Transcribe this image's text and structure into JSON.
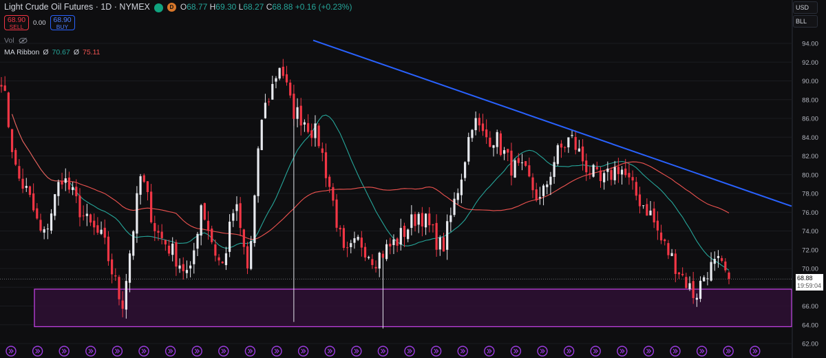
{
  "header": {
    "symbol": "Light Crude Oil Futures · 1D · NYMEX",
    "d_badge": "D",
    "open_key": "O",
    "open": "68.77",
    "high_key": "H",
    "high": "69.30",
    "low_key": "L",
    "low": "68.27",
    "close_key": "C",
    "close": "68.88",
    "change": "+0.16 (+0.23%)",
    "market_open_icon": "green-dot-icon"
  },
  "trade": {
    "sell_price": "68.90",
    "sell_label": "SELL",
    "spread": "0.00",
    "buy_price": "68.90",
    "buy_label": "BUY"
  },
  "indicators": {
    "vol_label": "Vol",
    "vol_icon": "eye-slash-icon",
    "ma_label": "MA Ribbon",
    "ma_symbol": "Ø",
    "ma1_value": "70.67",
    "ma2_value": "75.11"
  },
  "currency": [
    "USD",
    "BLL"
  ],
  "price_tag": {
    "price": "68.88",
    "countdown": "19:59:04"
  },
  "colors": {
    "up": "#e7e9ee",
    "down": "#f23645",
    "ma_fast": "#26a69a",
    "ma_slow": "#ef5350",
    "trendline": "#2962ff",
    "zone_stroke": "#c040e0",
    "zone_fill": "#2e0f34"
  },
  "chart_data": {
    "type": "candlestick",
    "y_ticks": [
      "94.00",
      "92.00",
      "90.00",
      "88.00",
      "86.00",
      "84.00",
      "82.00",
      "80.00",
      "78.00",
      "76.00",
      "74.00",
      "72.00",
      "70.00",
      "68.00",
      "66.00",
      "64.00",
      "62.00"
    ],
    "ylim": [
      61.3,
      95.2
    ],
    "bar_count": 205,
    "close_path": [
      [
        0,
        90.5
      ],
      [
        8,
        80
      ],
      [
        14,
        78
      ],
      [
        22,
        73
      ],
      [
        32,
        80
      ],
      [
        45,
        75
      ],
      [
        54,
        73
      ],
      [
        64,
        66
      ],
      [
        74,
        80
      ],
      [
        82,
        74
      ],
      [
        90,
        72
      ],
      [
        100,
        69
      ],
      [
        106,
        77
      ],
      [
        113,
        72
      ],
      [
        117,
        70
      ],
      [
        124,
        77
      ],
      [
        131,
        69.5
      ],
      [
        138,
        86
      ],
      [
        148,
        92
      ],
      [
        154,
        87
      ],
      [
        160,
        86
      ],
      [
        168,
        84
      ],
      [
        175,
        78
      ],
      [
        182,
        71
      ],
      [
        190,
        73
      ],
      [
        198,
        71
      ],
      [
        210,
        73
      ],
      [
        222,
        76
      ],
      [
        234,
        72
      ],
      [
        244,
        80
      ],
      [
        250,
        86
      ],
      [
        256,
        84
      ],
      [
        262,
        84
      ],
      [
        270,
        81
      ],
      [
        278,
        80
      ],
      [
        286,
        77
      ],
      [
        294,
        82
      ],
      [
        302,
        84
      ],
      [
        310,
        81
      ],
      [
        318,
        79
      ],
      [
        328,
        81
      ],
      [
        336,
        78
      ],
      [
        344,
        76
      ],
      [
        350,
        73
      ],
      [
        356,
        71
      ],
      [
        362,
        69
      ],
      [
        368,
        67
      ],
      [
        374,
        69.8
      ],
      [
        380,
        70.5
      ],
      [
        386,
        68.9
      ]
    ],
    "trendline": [
      [
        160,
        94.7
      ],
      [
        417,
        76.8
      ]
    ],
    "support_zone": [
      63.8,
      67.8
    ],
    "ma_fast": {
      "name": "MA Ribbon",
      "last": 70.67
    },
    "ma_slow": {
      "name": "MA Ribbon",
      "last": 75.11
    },
    "last_price": 68.88,
    "markers_row": "event-arrow-icons"
  }
}
